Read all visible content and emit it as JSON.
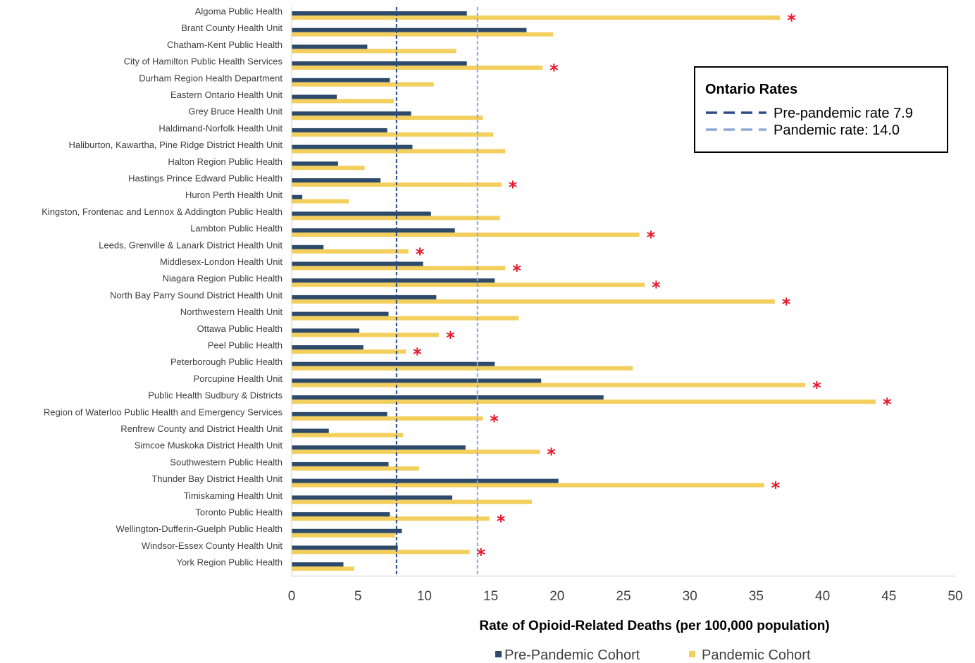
{
  "chart_data": {
    "type": "bar",
    "orientation": "horizontal",
    "title": "",
    "xlabel": "Rate of Opioid-Related Deaths (per 100,000 population)",
    "ylabel": "",
    "xlim": [
      0,
      50
    ],
    "xticks": [
      0,
      5,
      10,
      15,
      20,
      25,
      30,
      35,
      40,
      45,
      50
    ],
    "grid": false,
    "legend_position": "bottom",
    "categories": [
      "Algoma Public Health",
      "Brant County Health Unit",
      "Chatham-Kent Public Health",
      "City of Hamilton Public Health Services",
      "Durham Region Health Department",
      "Eastern Ontario Health Unit",
      "Grey Bruce Health Unit",
      "Haldimand-Norfolk Health Unit",
      "Haliburton, Kawartha, Pine Ridge District Health Unit",
      "Halton Region Public Health",
      "Hastings Prince Edward Public Health",
      "Huron Perth Health Unit",
      "Kingston, Frontenac and Lennox & Addington Public Health",
      "Lambton Public Health",
      "Leeds, Grenville & Lanark District Health Unit",
      "Middlesex-London Health Unit",
      "Niagara Region Public Health",
      "North Bay Parry Sound District Health Unit",
      "Northwestern Health Unit",
      "Ottawa Public Health",
      "Peel Public Health",
      "Peterborough Public Health",
      "Porcupine Health Unit",
      "Public Health Sudbury & Districts",
      "Region of Waterloo Public Health and Emergency Services",
      "Renfrew County and District Health Unit",
      "Simcoe Muskoka District Health Unit",
      "Southwestern Public Health",
      "Thunder Bay District Health Unit",
      "Timiskaming Health Unit",
      "Toronto Public Health",
      "Wellington-Dufferin-Guelph Public Health",
      "Windsor-Essex County Health Unit",
      "York Region Public Health"
    ],
    "series": [
      {
        "name": "Pre-Pandemic Cohort",
        "color": "#2E4A6B",
        "values": [
          13.2,
          17.7,
          5.7,
          13.2,
          7.4,
          3.4,
          9.0,
          7.2,
          9.1,
          3.5,
          6.7,
          0.8,
          10.5,
          12.3,
          2.4,
          9.9,
          15.3,
          10.9,
          7.3,
          5.1,
          5.4,
          15.3,
          18.8,
          23.5,
          7.2,
          2.8,
          13.1,
          7.3,
          20.1,
          12.1,
          7.4,
          8.3,
          8.0,
          3.9
        ]
      },
      {
        "name": "Pandemic Cohort",
        "color": "#F3CF5E",
        "values": [
          36.8,
          19.7,
          12.4,
          18.9,
          10.7,
          7.7,
          14.4,
          15.2,
          16.1,
          5.5,
          15.8,
          4.3,
          15.7,
          26.2,
          8.8,
          16.1,
          26.6,
          36.4,
          17.1,
          11.1,
          8.6,
          25.7,
          38.7,
          44.0,
          14.4,
          8.4,
          18.7,
          9.6,
          35.6,
          18.1,
          14.9,
          7.8,
          13.4,
          4.7
        ]
      }
    ],
    "significant_marker": "*",
    "significant_marker_color": "#E8192C",
    "significant": [
      0,
      3,
      10,
      13,
      14,
      15,
      16,
      17,
      19,
      20,
      22,
      23,
      24,
      26,
      28,
      30,
      32
    ],
    "reference_lines": [
      {
        "label": "Pre-pandemic rate 7.9",
        "value": 7.9,
        "color": "#2E4A8C",
        "style": "dashed"
      },
      {
        "label": "Pandemic rate: 14.0",
        "value": 14.0,
        "color": "#8FA9D6",
        "style": "dashed"
      }
    ],
    "reference_legend_title": "Ontario Rates"
  }
}
